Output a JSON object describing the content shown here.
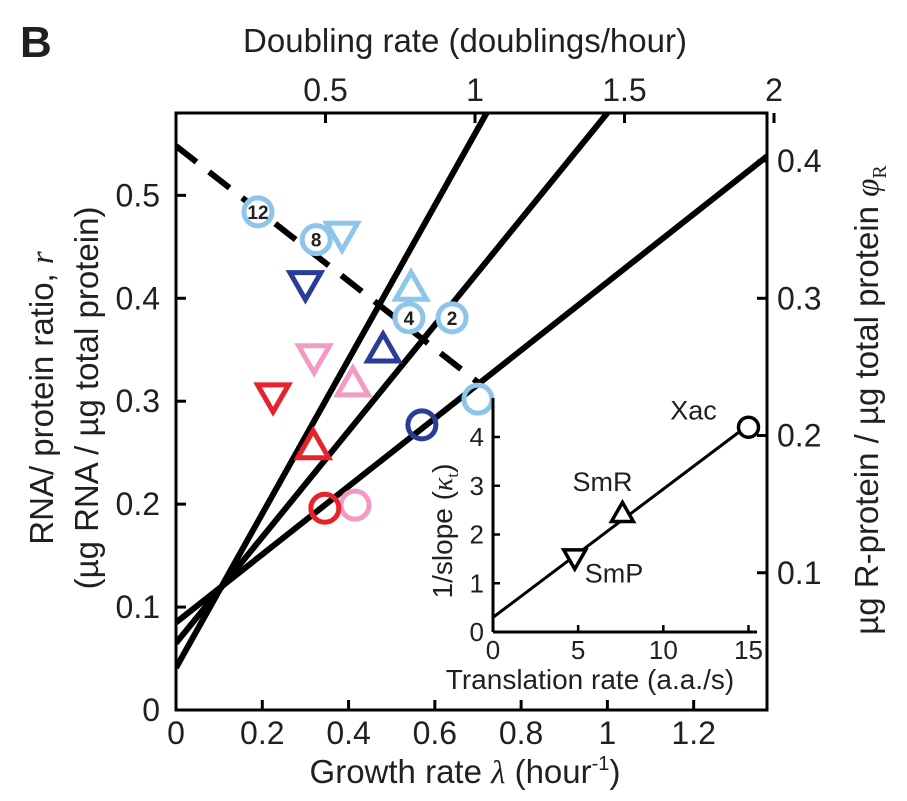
{
  "panel_label": "B",
  "colors": {
    "red": "#e8222a",
    "pink": "#f29ac4",
    "dark_blue": "#2a3d96",
    "light_blue": "#8ec5ea",
    "black": "#000000"
  },
  "chart_data": [
    {
      "type": "scatter",
      "xlabel": "Growth rate",
      "xlabel_symbol": "λ",
      "xlabel_unit_pre": "(hour",
      "xlabel_unit_sup": "-1",
      "xlabel_unit_post": ")",
      "xlim": [
        0,
        1.37
      ],
      "x_ticks": [
        0,
        0.2,
        0.4,
        0.6,
        0.8,
        1,
        1.2
      ],
      "x_tick_labels": [
        "0",
        "0.2",
        "0.4",
        "0.6",
        "0.8",
        "1",
        "1.2"
      ],
      "ylabel_line1": "RNA/ protein ratio,",
      "ylabel_symbol": "r",
      "ylabel_line2": "(µg RNA / µg total protein)",
      "ylim": [
        0,
        0.58
      ],
      "y_ticks": [
        0,
        0.1,
        0.2,
        0.3,
        0.4,
        0.5
      ],
      "y_tick_labels": [
        "0",
        "0.1",
        "0.2",
        "0.3",
        "0.4",
        "0.5"
      ],
      "top_axis": {
        "label": "Doubling rate (doublings/hour)",
        "ticks": [
          0.5,
          1,
          1.5,
          2
        ],
        "tick_labels": [
          "0.5",
          "1",
          "1.5",
          "2"
        ],
        "ln2_scale": 0.6931
      },
      "right_axis": {
        "label": "µg R-protein / µg total protein",
        "label_symbol": "φ",
        "label_subscript": "R",
        "ticks": [
          0.1,
          0.2,
          0.3,
          0.4
        ],
        "tick_labels": [
          "0.1",
          "0.2",
          "0.3",
          "0.4"
        ],
        "r_per_phi": 1.3333
      },
      "lines": [
        {
          "name": "",
          "style": "solid",
          "x": [
            0,
            0.72
          ],
          "y": [
            0.041,
            0.58
          ]
        },
        {
          "name": "",
          "style": "solid",
          "x": [
            0,
            1.0
          ],
          "y": [
            0.065,
            0.58
          ]
        },
        {
          "name": "",
          "style": "solid",
          "x": [
            0,
            1.37
          ],
          "y": [
            0.085,
            0.538
          ]
        },
        {
          "name": "",
          "style": "dashed",
          "x": [
            0,
            0.71
          ],
          "y": [
            0.548,
            0.315
          ]
        }
      ],
      "points": [
        {
          "marker": "circle",
          "color": "light_blue",
          "filled": true,
          "label": "12",
          "x": 0.19,
          "y": 0.484
        },
        {
          "marker": "circle",
          "color": "light_blue",
          "filled": true,
          "label": "8",
          "x": 0.325,
          "y": 0.457
        },
        {
          "marker": "triangle-down",
          "color": "light_blue",
          "x": 0.385,
          "y": 0.464
        },
        {
          "marker": "triangle-up",
          "color": "light_blue",
          "x": 0.545,
          "y": 0.408
        },
        {
          "marker": "circle",
          "color": "light_blue",
          "filled": true,
          "label": "4",
          "x": 0.54,
          "y": 0.381
        },
        {
          "marker": "circle",
          "color": "light_blue",
          "filled": true,
          "label": "2",
          "x": 0.64,
          "y": 0.381
        },
        {
          "marker": "circle",
          "color": "light_blue",
          "filled": false,
          "x": 0.7,
          "y": 0.302
        },
        {
          "marker": "triangle-down",
          "color": "dark_blue",
          "x": 0.3,
          "y": 0.416
        },
        {
          "marker": "triangle-up",
          "color": "dark_blue",
          "x": 0.48,
          "y": 0.348
        },
        {
          "marker": "circle",
          "color": "dark_blue",
          "filled": false,
          "x": 0.57,
          "y": 0.277
        },
        {
          "marker": "triangle-down",
          "color": "pink",
          "x": 0.32,
          "y": 0.345
        },
        {
          "marker": "triangle-up",
          "color": "pink",
          "x": 0.41,
          "y": 0.315
        },
        {
          "marker": "circle",
          "color": "pink",
          "filled": false,
          "x": 0.415,
          "y": 0.199
        },
        {
          "marker": "triangle-down",
          "color": "red",
          "x": 0.225,
          "y": 0.307
        },
        {
          "marker": "triangle-up",
          "color": "red",
          "x": 0.318,
          "y": 0.254
        },
        {
          "marker": "circle",
          "color": "red",
          "filled": false,
          "x": 0.345,
          "y": 0.196
        }
      ]
    },
    {
      "type": "line",
      "role": "inset",
      "xlabel": "Translation rate (a.a./s)",
      "xlim": [
        0,
        15.5
      ],
      "x_ticks": [
        0,
        5,
        10,
        15
      ],
      "x_tick_labels": [
        "0",
        "5",
        "10",
        "15"
      ],
      "ylabel": "1/slope (",
      "ylabel_symbol": "κ",
      "ylabel_subscript": "t",
      "ylabel_close": ")",
      "ylim": [
        0,
        4.8
      ],
      "y_ticks": [
        0,
        1,
        2,
        3,
        4
      ],
      "y_tick_labels": [
        "0",
        "1",
        "2",
        "3",
        "4"
      ],
      "line": {
        "x": [
          0,
          15.2
        ],
        "y": [
          0.3,
          4.3
        ]
      },
      "points": [
        {
          "marker": "triangle-down",
          "label": "SmP",
          "x": 4.8,
          "y": 1.55
        },
        {
          "marker": "triangle-up",
          "label": "SmR",
          "x": 7.6,
          "y": 2.4
        },
        {
          "marker": "circle",
          "label": "Xac",
          "x": 15.0,
          "y": 4.2
        }
      ]
    }
  ]
}
